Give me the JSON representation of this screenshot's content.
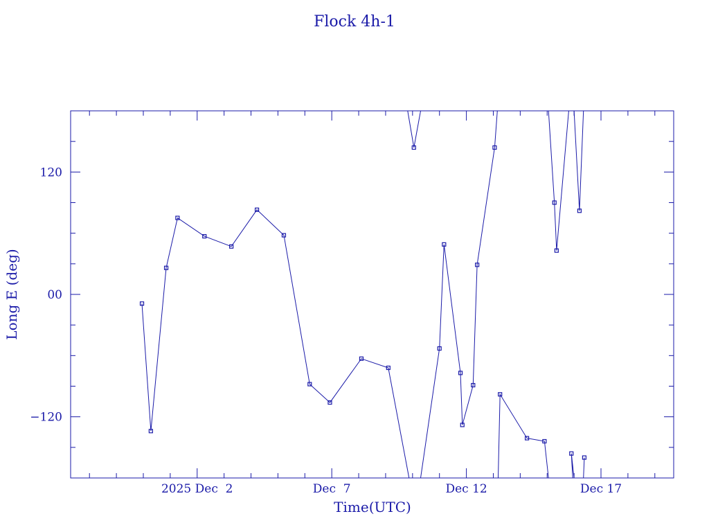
{
  "chart_data": {
    "type": "line",
    "title": "Flock 4h-1",
    "xlabel": "Time(UTC)",
    "ylabel": "Long E (deg)",
    "x_unit": "days",
    "xlim": [
      -4.7,
      17.7
    ],
    "ylim": [
      -180,
      180
    ],
    "x_ticks": [
      {
        "value": 0,
        "label": "2025 Dec  2"
      },
      {
        "value": 5,
        "label": "Dec  7"
      },
      {
        "value": 10,
        "label": "Dec 12"
      },
      {
        "value": 15,
        "label": "Dec 17"
      }
    ],
    "y_ticks": [
      {
        "value": 120,
        "label": "120"
      },
      {
        "value": 0,
        "label": "00"
      },
      {
        "value": -120,
        "label": "−120"
      }
    ],
    "grid": false,
    "line_color": "#1a1aa8",
    "series": [
      {
        "segments": [
          [
            [
              -2.05,
              -9
            ],
            [
              -1.72,
              -134
            ],
            [
              -1.15,
              26
            ],
            [
              -0.73,
              75
            ],
            [
              0.27,
              57
            ],
            [
              1.27,
              47
            ],
            [
              2.22,
              83
            ],
            [
              3.22,
              58
            ],
            [
              4.18,
              -88
            ],
            [
              4.93,
              -106
            ],
            [
              6.1,
              -63
            ],
            [
              7.1,
              -72
            ],
            [
              7.87,
              -180
            ]
          ],
          [
            [
              8.3,
              -180
            ],
            [
              9.0,
              -53
            ],
            [
              9.17,
              49
            ],
            [
              9.78,
              -77
            ],
            [
              9.85,
              -128
            ],
            [
              10.25,
              -89
            ],
            [
              10.4,
              29
            ],
            [
              11.05,
              144
            ],
            [
              11.15,
              180
            ]
          ],
          [
            [
              11.18,
              -180
            ],
            [
              11.25,
              -98
            ],
            [
              12.25,
              -141
            ],
            [
              12.9,
              -144
            ],
            [
              13.05,
              -180
            ]
          ],
          [
            [
              13.05,
              180
            ],
            [
              13.27,
              90
            ],
            [
              13.35,
              43
            ],
            [
              13.8,
              180
            ]
          ],
          [
            [
              13.95,
              -180
            ],
            [
              13.9,
              -156
            ],
            [
              14.0,
              -180
            ]
          ],
          [
            [
              14.0,
              180
            ],
            [
              14.2,
              82
            ],
            [
              14.35,
              180
            ]
          ],
          [
            [
              14.35,
              -180
            ],
            [
              14.38,
              -160
            ]
          ],
          [
            [
              7.82,
              180
            ],
            [
              8.05,
              144
            ],
            [
              8.3,
              180
            ]
          ]
        ]
      }
    ]
  }
}
